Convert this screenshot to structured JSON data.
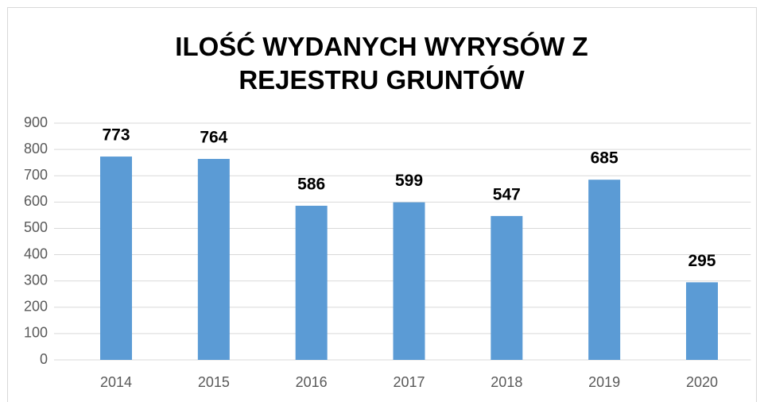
{
  "chart_data": {
    "type": "bar",
    "title": "ILOŚĆ WYDANYCH WYRYSÓW Z REJESTRU GRUNTÓW",
    "categories": [
      "2014",
      "2015",
      "2016",
      "2017",
      "2018",
      "2019",
      "2020"
    ],
    "values": [
      773,
      764,
      586,
      599,
      547,
      685,
      295
    ],
    "color": "#5b9bd5",
    "ylim": [
      0,
      900
    ],
    "yticks": [
      0,
      100,
      200,
      300,
      400,
      500,
      600,
      700,
      800,
      900
    ],
    "grid": true
  }
}
